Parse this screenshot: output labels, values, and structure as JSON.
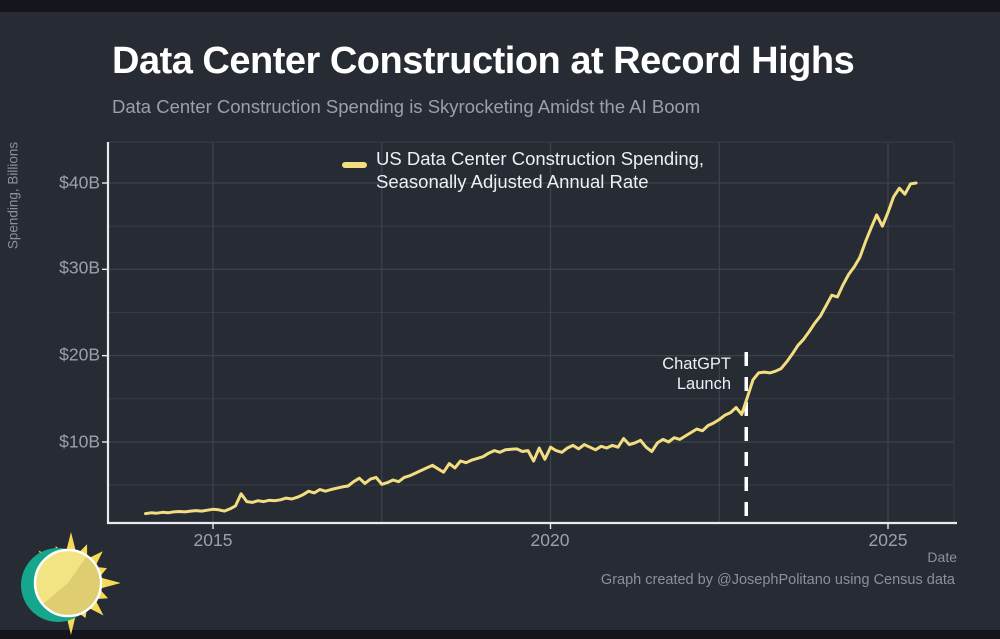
{
  "page": {
    "title": "Data Center Construction at Record Highs",
    "subtitle": "Data Center Construction Spending is Skyrocketing Amidst the AI Boom",
    "credit": "Graph created by @JosephPolitano using Census data"
  },
  "colors": {
    "background": "#262b34",
    "letterbox_strip": "#14161b",
    "title_text": "#ffffff",
    "muted_text": "#9aa0ab",
    "line": "#f3dd81",
    "gridline": "#353b45",
    "axis_line": "#e8eaec",
    "dashed_annotation": "#ffffff",
    "logo_teal": "#16a68c",
    "logo_yellow": "#f2e383",
    "logo_ray_yellow": "#f5da57"
  },
  "chart_data": {
    "type": "line",
    "title": "Data Center Construction at Record Highs",
    "subtitle": "Data Center Construction Spending is Skyrocketing Amidst the AI Boom",
    "xlabel": "Date",
    "ylabel": "Spending, Billions",
    "legend_line1": "US Data Center Construction Spending,",
    "legend_line2": "Seasonally Adjusted Annual Rate",
    "source_note": "Graph created by @JosephPolitano using Census data",
    "yticks": [
      "$10B",
      "$20B",
      "$30B",
      "$40B"
    ],
    "ytick_values": [
      10,
      20,
      30,
      40
    ],
    "xticks": [
      "2015",
      "2020",
      "2025"
    ],
    "xtick_values": [
      2015,
      2020,
      2025
    ],
    "ygrid_interval_billions": 5,
    "xgrid_years": [
      2015,
      2017.5,
      2020,
      2022.5,
      2025
    ],
    "xlim_years": [
      2013.44,
      2025.98
    ],
    "ylim_billions": [
      0.6,
      44.7
    ],
    "annotation": {
      "label_line1": "ChatGPT",
      "label_line2": "Launch",
      "x_year": 2022.9
    },
    "series": [
      {
        "name": "US Data Center Construction Spending, Seasonally Adjusted Annual Rate",
        "unit": "billions of USD, seasonally adjusted annual rate",
        "x_start_year": 2014,
        "frequency": "monthly",
        "values": [
          1.7,
          1.8,
          1.75,
          1.85,
          1.8,
          1.9,
          1.95,
          1.9,
          2.0,
          2.05,
          2.0,
          2.1,
          2.2,
          2.15,
          2.0,
          2.25,
          2.6,
          4.0,
          3.1,
          3.0,
          3.2,
          3.1,
          3.25,
          3.2,
          3.3,
          3.5,
          3.4,
          3.6,
          3.9,
          4.3,
          4.1,
          4.5,
          4.3,
          4.5,
          4.65,
          4.8,
          4.9,
          5.4,
          5.8,
          5.2,
          5.7,
          5.9,
          5.1,
          5.3,
          5.6,
          5.4,
          5.9,
          6.1,
          6.4,
          6.7,
          7.0,
          7.3,
          6.9,
          6.5,
          7.5,
          7.0,
          7.8,
          7.6,
          7.9,
          8.1,
          8.3,
          8.7,
          9.0,
          8.8,
          9.1,
          9.15,
          9.2,
          8.9,
          9.0,
          7.8,
          9.3,
          8.0,
          9.4,
          9.0,
          8.8,
          9.3,
          9.6,
          9.2,
          9.7,
          9.4,
          9.1,
          9.5,
          9.3,
          9.6,
          9.4,
          10.4,
          9.7,
          9.9,
          10.2,
          9.4,
          8.9,
          9.9,
          10.3,
          10.0,
          10.5,
          10.3,
          10.7,
          11.1,
          11.5,
          11.3,
          11.9,
          12.2,
          12.6,
          13.1,
          13.4,
          14.0,
          13.2,
          15.2,
          17.2,
          18.0,
          18.1,
          18.0,
          18.2,
          18.5,
          19.3,
          20.2,
          21.2,
          21.9,
          22.8,
          23.8,
          24.6,
          25.8,
          27.0,
          26.8,
          28.2,
          29.4,
          30.3,
          31.4,
          33.2,
          34.8,
          36.3,
          35.0,
          36.6,
          38.4,
          39.4,
          38.7,
          39.9,
          40.0
        ]
      }
    ]
  }
}
